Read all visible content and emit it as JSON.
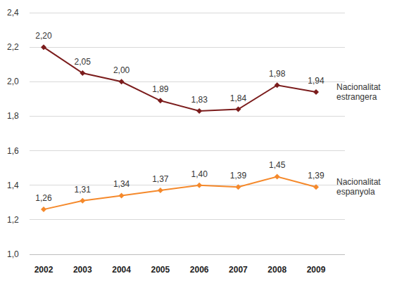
{
  "chart_data": {
    "type": "line",
    "categories": [
      "2002",
      "2003",
      "2004",
      "2005",
      "2006",
      "2007",
      "2008",
      "2009"
    ],
    "series": [
      {
        "name": "Nacionalitat estrangera",
        "color": "#7b1c1c",
        "values": [
          2.2,
          2.05,
          2.0,
          1.89,
          1.83,
          1.84,
          1.98,
          1.94
        ],
        "value_labels": [
          "2,20",
          "2,05",
          "2,00",
          "1,89",
          "1,83",
          "1,84",
          "1,98",
          "1,94"
        ]
      },
      {
        "name": "Nacionalitat espanyola",
        "color": "#f5892b",
        "values": [
          1.26,
          1.31,
          1.34,
          1.37,
          1.4,
          1.39,
          1.45,
          1.39
        ],
        "value_labels": [
          "1,26",
          "1,31",
          "1,34",
          "1,37",
          "1,40",
          "1,39",
          "1,45",
          "1,39"
        ]
      }
    ],
    "ylim": [
      1.0,
      2.4
    ],
    "yticks": [
      {
        "value": 1.0,
        "label": "1,0"
      },
      {
        "value": 1.2,
        "label": "1,2"
      },
      {
        "value": 1.4,
        "label": "1,4"
      },
      {
        "value": 1.6,
        "label": "1,6"
      },
      {
        "value": 1.8,
        "label": "1,8"
      },
      {
        "value": 2.0,
        "label": "2,0"
      },
      {
        "value": 2.2,
        "label": "2,2"
      },
      {
        "value": 2.4,
        "label": "2,4"
      }
    ],
    "grid": true,
    "data_labels": true,
    "marker": "diamond"
  }
}
